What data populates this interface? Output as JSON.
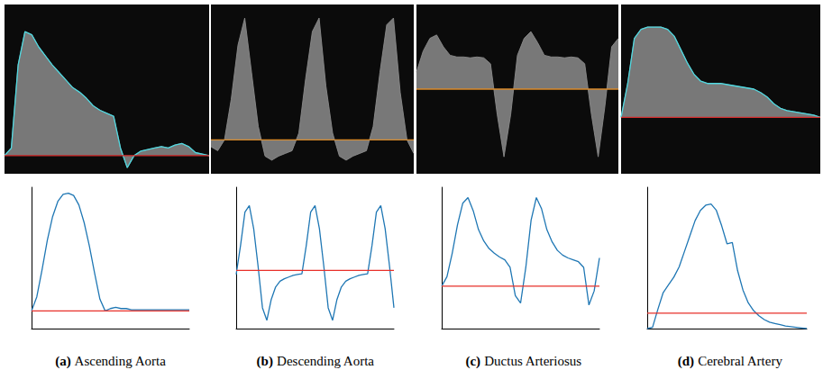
{
  "chart_data": [
    {
      "type": "area",
      "xlim": [
        0,
        30
      ],
      "ylim": [
        -0.12,
        1.0
      ],
      "tick_labels": false,
      "x": [
        0,
        1,
        2,
        3,
        4,
        5,
        6,
        7,
        8,
        9,
        10,
        11,
        12,
        13,
        14,
        15,
        16,
        17,
        18,
        19,
        20,
        21,
        22,
        23,
        24,
        25,
        26,
        27,
        28,
        29,
        30
      ],
      "series": [
        {
          "type": "area",
          "color": "#8c8c8c",
          "values": [
            0,
            0.05,
            0.6,
            0.82,
            0.8,
            0.72,
            0.66,
            0.6,
            0.55,
            0.5,
            0.45,
            0.42,
            0.38,
            0.33,
            0.3,
            0.28,
            0.26,
            0.05,
            -0.08,
            0,
            0.03,
            0.04,
            0.05,
            0.06,
            0.05,
            0.07,
            0.08,
            0.06,
            0.02,
            0.01,
            0
          ]
        },
        {
          "type": "line",
          "color": "#4fd8e0",
          "values": [
            0,
            0.05,
            0.6,
            0.82,
            0.8,
            0.72,
            0.66,
            0.6,
            0.55,
            0.5,
            0.45,
            0.42,
            0.38,
            0.33,
            0.3,
            0.28,
            0.26,
            0.05,
            -0.08,
            0,
            0.03,
            0.04,
            0.05,
            0.06,
            0.05,
            0.07,
            0.08,
            0.06,
            0.02,
            0.01,
            0
          ]
        },
        {
          "type": "line",
          "color": "#d42a2a",
          "values": [
            0,
            0,
            0,
            0,
            0,
            0,
            0,
            0,
            0,
            0,
            0,
            0,
            0,
            0,
            0,
            0,
            0,
            0,
            0,
            0,
            0,
            0,
            0,
            0,
            0,
            0,
            0,
            0,
            0,
            0,
            0
          ]
        }
      ]
    },
    {
      "type": "area",
      "xlim": [
        0,
        30
      ],
      "ylim": [
        -0.25,
        1.0
      ],
      "tick_labels": false,
      "x": [
        0,
        1,
        2,
        3,
        4,
        5,
        6,
        7,
        8,
        9,
        10,
        11,
        12,
        13,
        14,
        15,
        16,
        17,
        18,
        19,
        20,
        21,
        22,
        23,
        24,
        25,
        26,
        27,
        28,
        29,
        30
      ],
      "series": [
        {
          "type": "area",
          "color": "#8c8c8c",
          "values": [
            -0.05,
            -0.08,
            0,
            0.3,
            0.7,
            0.9,
            0.5,
            0.1,
            -0.12,
            -0.15,
            -0.12,
            -0.1,
            -0.08,
            0.05,
            0.45,
            0.8,
            0.9,
            0.4,
            0.05,
            -0.12,
            -0.15,
            -0.12,
            -0.1,
            -0.08,
            0.1,
            0.5,
            0.85,
            0.9,
            0.35,
            0,
            -0.1
          ]
        },
        {
          "type": "line",
          "color": "#d98a2b",
          "values": [
            0,
            0,
            0,
            0,
            0,
            0,
            0,
            0,
            0,
            0,
            0,
            0,
            0,
            0,
            0,
            0,
            0,
            0,
            0,
            0,
            0,
            0,
            0,
            0,
            0,
            0,
            0,
            0,
            0,
            0,
            0
          ]
        }
      ]
    },
    {
      "type": "area",
      "xlim": [
        0,
        30
      ],
      "ylim": [
        -1,
        1
      ],
      "tick_labels": false,
      "x": [
        0,
        1,
        2,
        3,
        4,
        5,
        6,
        7,
        8,
        9,
        10,
        11,
        12,
        13,
        14,
        15,
        16,
        17,
        18,
        19,
        20,
        21,
        22,
        23,
        24,
        25,
        26,
        27,
        28,
        29,
        30
      ],
      "series": [
        {
          "type": "area",
          "color": "#8c8c8c",
          "values": [
            0.2,
            0.45,
            0.6,
            0.64,
            0.5,
            0.4,
            0.38,
            0.38,
            0.37,
            0.38,
            0.37,
            0.3,
            -0.3,
            -0.8,
            -0.3,
            0.4,
            0.6,
            0.68,
            0.55,
            0.4,
            0.38,
            0.38,
            0.37,
            0.38,
            0.37,
            0.3,
            -0.3,
            -0.8,
            -0.2,
            0.5,
            0.6
          ]
        },
        {
          "type": "line",
          "color": "#d98a2b",
          "values": [
            0,
            0,
            0,
            0,
            0,
            0,
            0,
            0,
            0,
            0,
            0,
            0,
            0,
            0,
            0,
            0,
            0,
            0,
            0,
            0,
            0,
            0,
            0,
            0,
            0,
            0,
            0,
            0,
            0,
            0,
            0
          ]
        }
      ]
    },
    {
      "type": "area",
      "xlim": [
        0,
        30
      ],
      "ylim": [
        -0.5,
        1.0
      ],
      "tick_labels": false,
      "x": [
        0,
        1,
        2,
        3,
        4,
        5,
        6,
        7,
        8,
        9,
        10,
        11,
        12,
        13,
        14,
        15,
        16,
        17,
        18,
        19,
        20,
        21,
        22,
        23,
        24,
        25,
        26,
        27,
        28,
        29,
        30
      ],
      "series": [
        {
          "type": "area",
          "color": "#8c8c8c",
          "values": [
            0,
            0.3,
            0.7,
            0.78,
            0.8,
            0.8,
            0.8,
            0.78,
            0.72,
            0.6,
            0.48,
            0.38,
            0.32,
            0.3,
            0.3,
            0.3,
            0.29,
            0.28,
            0.27,
            0.26,
            0.25,
            0.22,
            0.18,
            0.12,
            0.08,
            0.06,
            0.05,
            0.04,
            0.03,
            0.02,
            0
          ]
        },
        {
          "type": "line",
          "color": "#4fd8e0",
          "values": [
            0,
            0.3,
            0.7,
            0.78,
            0.8,
            0.8,
            0.8,
            0.78,
            0.72,
            0.6,
            0.48,
            0.38,
            0.32,
            0.3,
            0.3,
            0.3,
            0.29,
            0.28,
            0.27,
            0.26,
            0.25,
            0.22,
            0.18,
            0.12,
            0.08,
            0.06,
            0.05,
            0.04,
            0.03,
            0.02,
            0
          ]
        },
        {
          "type": "line",
          "color": "#d42a2a",
          "values": [
            0,
            0,
            0,
            0,
            0,
            0,
            0,
            0,
            0,
            0,
            0,
            0,
            0,
            0,
            0,
            0,
            0,
            0,
            0,
            0,
            0,
            0,
            0,
            0,
            0,
            0,
            0,
            0,
            0,
            0,
            0
          ]
        }
      ]
    },
    {
      "type": "line",
      "title": "(a) Ascending Aorta",
      "xlim": [
        0,
        30
      ],
      "ylim": [
        -0.15,
        1.05
      ],
      "tick_labels": false,
      "x": [
        0,
        1,
        2,
        3,
        4,
        5,
        6,
        7,
        8,
        9,
        10,
        11,
        12,
        13,
        14,
        15,
        16,
        17,
        18,
        19,
        20,
        21,
        22,
        23,
        24,
        25,
        26,
        27,
        28,
        29,
        30
      ],
      "series": [
        {
          "color": "#1f77b4",
          "values": [
            0,
            0.12,
            0.35,
            0.6,
            0.8,
            0.93,
            0.99,
            1.0,
            0.98,
            0.9,
            0.75,
            0.55,
            0.32,
            0.1,
            0,
            0.02,
            0.03,
            0.02,
            0.02,
            0.01,
            0.01,
            0.01,
            0.01,
            0.01,
            0.01,
            0.01,
            0.01,
            0.01,
            0.01,
            0.01,
            0.01
          ]
        },
        {
          "color": "#e8302a",
          "values": [
            0,
            0,
            0,
            0,
            0,
            0,
            0,
            0,
            0,
            0,
            0,
            0,
            0,
            0,
            0,
            0,
            0,
            0,
            0,
            0,
            0,
            0,
            0,
            0,
            0,
            0,
            0,
            0,
            0,
            0,
            0
          ]
        }
      ]
    },
    {
      "type": "line",
      "title": "(b) Descending Aorta",
      "xlim": [
        0,
        36
      ],
      "ylim": [
        -0.7,
        1.0
      ],
      "tick_labels": false,
      "x": [
        0,
        1,
        2,
        3,
        4,
        5,
        6,
        7,
        8,
        9,
        10,
        11,
        12,
        13,
        14,
        15,
        16,
        17,
        18,
        19,
        20,
        21,
        22,
        23,
        24,
        25,
        26,
        27,
        28,
        29,
        30,
        31,
        32,
        33,
        34,
        35,
        36
      ],
      "series": [
        {
          "color": "#1f77b4",
          "values": [
            -0.05,
            0.3,
            0.7,
            0.78,
            0.5,
            0.05,
            -0.45,
            -0.6,
            -0.35,
            -0.2,
            -0.13,
            -0.1,
            -0.08,
            -0.06,
            -0.05,
            -0.04,
            0.3,
            0.7,
            0.78,
            0.5,
            0.05,
            -0.45,
            -0.6,
            -0.35,
            -0.2,
            -0.13,
            -0.1,
            -0.08,
            -0.06,
            -0.05,
            -0.04,
            0.3,
            0.7,
            0.78,
            0.5,
            0.05,
            -0.45
          ]
        },
        {
          "color": "#e8302a",
          "values": [
            0,
            0,
            0,
            0,
            0,
            0,
            0,
            0,
            0,
            0,
            0,
            0,
            0,
            0,
            0,
            0,
            0,
            0,
            0,
            0,
            0,
            0,
            0,
            0,
            0,
            0,
            0,
            0,
            0,
            0,
            0,
            0,
            0,
            0,
            0,
            0,
            0
          ]
        }
      ]
    },
    {
      "type": "line",
      "title": "(c) Ductus Arteriosus",
      "xlim": [
        0,
        30
      ],
      "ylim": [
        -0.45,
        1.05
      ],
      "tick_labels": false,
      "x": [
        0,
        1,
        2,
        3,
        4,
        5,
        6,
        7,
        8,
        9,
        10,
        11,
        12,
        13,
        14,
        15,
        16,
        17,
        18,
        19,
        20,
        21,
        22,
        23,
        24,
        25,
        26,
        27,
        28,
        29,
        30
      ],
      "series": [
        {
          "color": "#1f77b4",
          "values": [
            0,
            0.1,
            0.35,
            0.65,
            0.88,
            0.94,
            0.8,
            0.6,
            0.48,
            0.4,
            0.35,
            0.31,
            0.28,
            0.2,
            -0.1,
            -0.18,
            0.2,
            0.7,
            0.94,
            0.82,
            0.6,
            0.47,
            0.38,
            0.33,
            0.3,
            0.28,
            0.26,
            0.2,
            -0.2,
            -0.05,
            0.3
          ]
        },
        {
          "color": "#e8302a",
          "values": [
            0,
            0,
            0,
            0,
            0,
            0,
            0,
            0,
            0,
            0,
            0,
            0,
            0,
            0,
            0,
            0,
            0,
            0,
            0,
            0,
            0,
            0,
            0,
            0,
            0,
            0,
            0,
            0,
            0,
            0,
            0
          ]
        }
      ]
    },
    {
      "type": "line",
      "title": "(d) Cerebral Artery",
      "xlim": [
        0,
        30
      ],
      "ylim": [
        0,
        1.1
      ],
      "tick_labels": false,
      "x": [
        0,
        1,
        2,
        3,
        4,
        5,
        6,
        7,
        8,
        9,
        10,
        11,
        12,
        13,
        14,
        15,
        16,
        17,
        18,
        19,
        20,
        21,
        22,
        23,
        24,
        25,
        26,
        27,
        28,
        29,
        30
      ],
      "series": [
        {
          "color": "#1f77b4",
          "values": [
            0,
            0.01,
            0.15,
            0.28,
            0.34,
            0.4,
            0.48,
            0.6,
            0.72,
            0.84,
            0.92,
            0.96,
            0.97,
            0.92,
            0.8,
            0.66,
            0.67,
            0.45,
            0.3,
            0.2,
            0.14,
            0.1,
            0.07,
            0.05,
            0.04,
            0.03,
            0.02,
            0.015,
            0.01,
            0.005,
            0
          ]
        },
        {
          "color": "#e8302a",
          "values": [
            0.12,
            0.12,
            0.12,
            0.12,
            0.12,
            0.12,
            0.12,
            0.12,
            0.12,
            0.12,
            0.12,
            0.12,
            0.12,
            0.12,
            0.12,
            0.12,
            0.12,
            0.12,
            0.12,
            0.12,
            0.12,
            0.12,
            0.12,
            0.12,
            0.12,
            0.12,
            0.12,
            0.12,
            0.12,
            0.12,
            0.12
          ]
        }
      ]
    }
  ]
}
